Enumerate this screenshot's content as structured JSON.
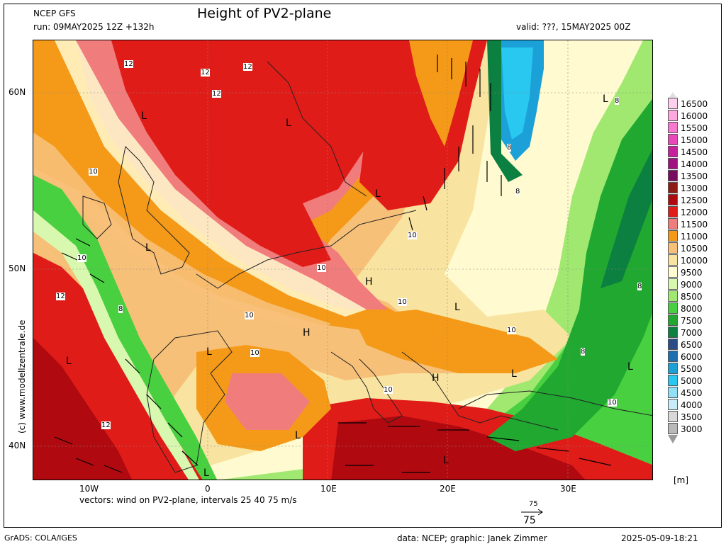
{
  "header": {
    "model": "NCEP GFS",
    "run": "run: 09MAY2025 12Z +132h",
    "title": "Height of PV2-plane",
    "valid": "valid: ???, 15MAY2025 00Z"
  },
  "map": {
    "lat_labels": [
      "60N",
      "50N",
      "40N"
    ],
    "lon_labels": [
      "10W",
      "0",
      "10E",
      "20E",
      "30E"
    ],
    "highs_lows": [
      "L",
      "L",
      "L",
      "L",
      "L",
      "L",
      "H",
      "H",
      "H",
      "L",
      "L",
      "L",
      "L",
      "L",
      "L",
      "L"
    ],
    "contour_labels": [
      "12",
      "12",
      "12",
      "12",
      "12",
      "12",
      "10",
      "10",
      "10",
      "10",
      "10",
      "10",
      "10",
      "10",
      "10",
      "10",
      "8",
      "8",
      "8",
      "8",
      "8",
      "8"
    ],
    "colors": {
      "deep_red": "#b00010",
      "red": "#e8241c",
      "pink": "#f0807a",
      "orange": "#f5a020",
      "tan": "#f5c77a",
      "cream": "#fff5c0",
      "lightgreen": "#c8f0a0",
      "green": "#40c848",
      "darkgreen": "#0c8048",
      "blue": "#20a8e0"
    }
  },
  "legend": {
    "unit": "[m]",
    "levels": [
      {
        "label": "16500",
        "color": "#ffd0ee"
      },
      {
        "label": "16000",
        "color": "#ffa8e0"
      },
      {
        "label": "15500",
        "color": "#f878d0"
      },
      {
        "label": "15000",
        "color": "#e848b8"
      },
      {
        "label": "14500",
        "color": "#c8209c"
      },
      {
        "label": "14000",
        "color": "#a01080"
      },
      {
        "label": "13500",
        "color": "#780c60"
      },
      {
        "label": "13000",
        "color": "#8c1c14"
      },
      {
        "label": "12500",
        "color": "#b00a10"
      },
      {
        "label": "12000",
        "color": "#e01c18"
      },
      {
        "label": "11500",
        "color": "#f07c7c"
      },
      {
        "label": "11000",
        "color": "#f59a18"
      },
      {
        "label": "10500",
        "color": "#f7c078"
      },
      {
        "label": "10000",
        "color": "#f8e4a0"
      },
      {
        "label": "9500",
        "color": "#fffad0"
      },
      {
        "label": "9000",
        "color": "#d8f8b0"
      },
      {
        "label": "8500",
        "color": "#a0e870"
      },
      {
        "label": "8000",
        "color": "#48d040"
      },
      {
        "label": "7500",
        "color": "#20a830"
      },
      {
        "label": "7000",
        "color": "#0c8040"
      },
      {
        "label": "6500",
        "color": "#2c4c88"
      },
      {
        "label": "6000",
        "color": "#1c70b0"
      },
      {
        "label": "5500",
        "color": "#1ca0d8"
      },
      {
        "label": "5000",
        "color": "#28c8f0"
      },
      {
        "label": "4500",
        "color": "#90e0f8"
      },
      {
        "label": "4000",
        "color": "#c8ecf8"
      },
      {
        "label": "3500",
        "color": "#d8d8d8"
      },
      {
        "label": "3000",
        "color": "#b8b8b8"
      }
    ]
  },
  "footer": {
    "vectors_note": "vectors: wind on PV2-plane, intervals 25 40 75 m/s",
    "ref_vector_label": "75",
    "ref_vector_top": "75",
    "grads": "GrADS: COLA/IGES",
    "credit": "data: NCEP; graphic: Janek Zimmer",
    "timestamp": "2025-05-09-18:21",
    "watermark": "(c)  www.modellzentrale.de"
  }
}
